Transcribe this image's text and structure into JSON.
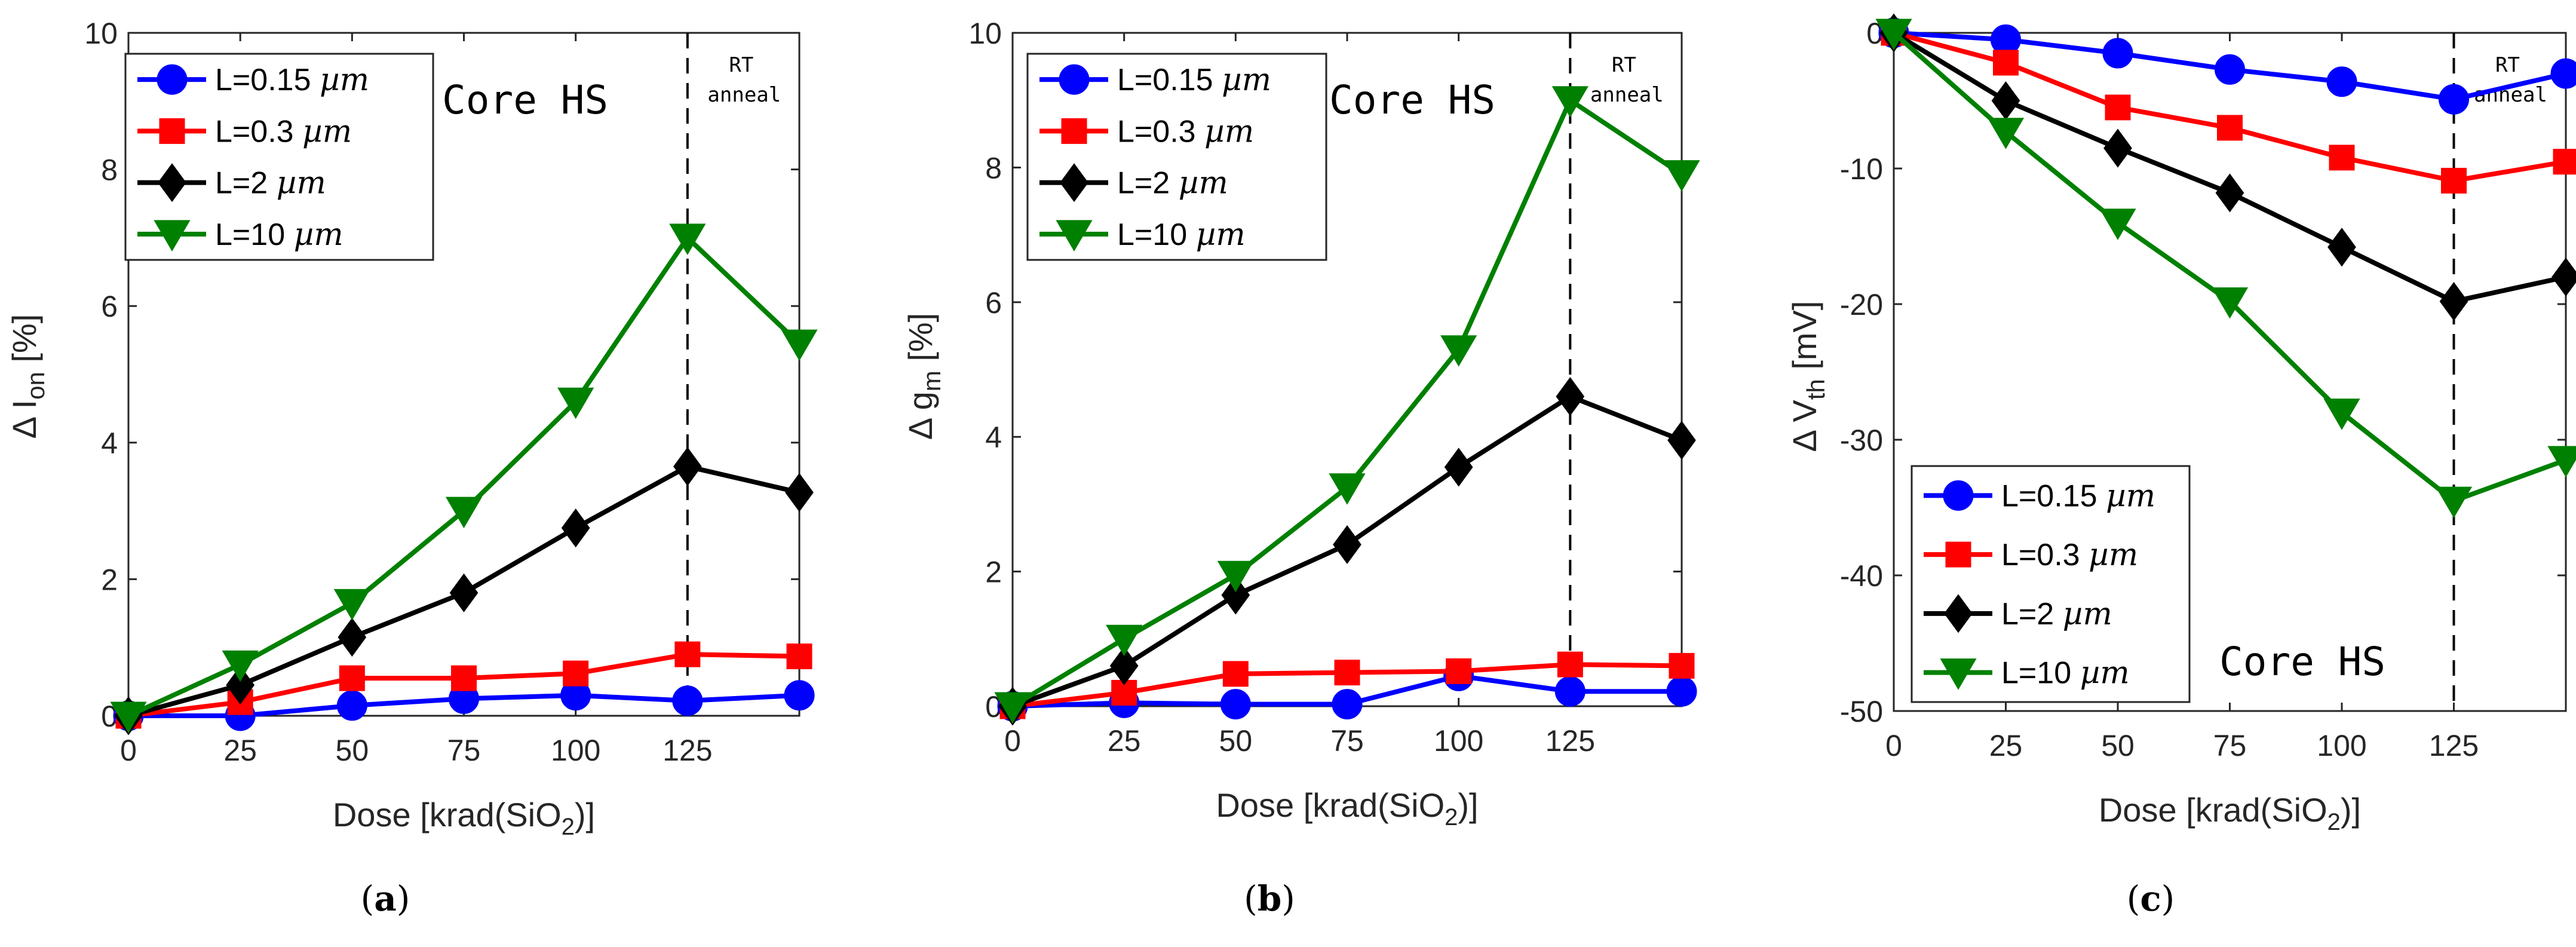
{
  "figure": {
    "captions": [
      {
        "open": "(",
        "letter": "a",
        "close": ")"
      },
      {
        "open": "(",
        "letter": "b",
        "close": ")"
      },
      {
        "open": "(",
        "letter": "c",
        "close": ")"
      }
    ]
  },
  "colors": {
    "L=0.15 µm": "#0000ff",
    "L=0.3 µm": "#ff0000",
    "L=2 µm": "#000000",
    "L=10 µm": "#008000",
    "axis": "#262626",
    "vline": "#000000"
  },
  "chart_data": [
    {
      "type": "line",
      "panel": "a",
      "xlabel": "Dose [krad(SiO2)]",
      "ylabel": "Δ Ion [%]",
      "x_ticks": [
        "0",
        "25",
        "50",
        "75",
        "100",
        "125"
      ],
      "x": [
        0,
        25,
        50,
        75,
        100,
        125,
        150
      ],
      "xlim": [
        0,
        150
      ],
      "ylim": [
        0,
        10
      ],
      "y_ticks": [
        "0",
        "2",
        "4",
        "6",
        "8",
        "10"
      ],
      "grid": false,
      "legend_position": "top-left",
      "annotations": {
        "text": "Core HS",
        "vline_x": 125,
        "vline_label_1": "RT",
        "vline_label_2": "anneal"
      },
      "series": [
        {
          "name": "L=0.15 µm",
          "marker": "circle",
          "values": [
            0,
            0,
            0.15,
            0.25,
            0.3,
            0.22,
            0.3
          ]
        },
        {
          "name": "L=0.3 µm",
          "marker": "square",
          "values": [
            0,
            0.2,
            0.55,
            0.55,
            0.62,
            0.9,
            0.87
          ]
        },
        {
          "name": "L=2 µm",
          "marker": "diamond",
          "values": [
            0,
            0.45,
            1.15,
            1.8,
            2.75,
            3.65,
            3.27
          ]
        },
        {
          "name": "L=10 µm",
          "marker": "triangle-down",
          "values": [
            0,
            0.75,
            1.65,
            3.0,
            4.6,
            7.0,
            5.45
          ]
        }
      ]
    },
    {
      "type": "line",
      "panel": "b",
      "xlabel": "Dose [krad(SiO2)]",
      "ylabel": "Δ gm [%]",
      "x_ticks": [
        "0",
        "25",
        "50",
        "75",
        "100",
        "125"
      ],
      "x": [
        0,
        25,
        50,
        75,
        100,
        125,
        150
      ],
      "xlim": [
        0,
        150
      ],
      "ylim": [
        0,
        10
      ],
      "y_ticks": [
        "0",
        "2",
        "4",
        "6",
        "8",
        "10"
      ],
      "grid": false,
      "legend_position": "top-left",
      "annotations": {
        "text": "Core HS",
        "vline_x": 125,
        "vline_label_1": "RT",
        "vline_label_2": "anneal"
      },
      "series": [
        {
          "name": "L=0.15 µm",
          "marker": "circle",
          "values": [
            0,
            0.05,
            0.03,
            0.03,
            0.45,
            0.22,
            0.22
          ]
        },
        {
          "name": "L=0.3 µm",
          "marker": "square",
          "values": [
            0,
            0.2,
            0.48,
            0.5,
            0.52,
            0.62,
            0.6
          ]
        },
        {
          "name": "L=2 µm",
          "marker": "diamond",
          "values": [
            0,
            0.6,
            1.65,
            2.4,
            3.55,
            4.6,
            3.95
          ]
        },
        {
          "name": "L=10 µm",
          "marker": "triangle-down",
          "values": [
            0,
            1.0,
            1.95,
            3.25,
            5.3,
            9.0,
            7.9
          ]
        }
      ]
    },
    {
      "type": "line",
      "panel": "c",
      "xlabel": "Dose [krad(SiO2)]",
      "ylabel": "Δ Vth [mV]",
      "x_ticks": [
        "0",
        "25",
        "50",
        "75",
        "100",
        "125"
      ],
      "x": [
        0,
        25,
        50,
        75,
        100,
        125,
        150
      ],
      "xlim": [
        0,
        150
      ],
      "ylim": [
        -50,
        0
      ],
      "y_ticks": [
        "0",
        "-10",
        "-20",
        "-30",
        "-40",
        "-50"
      ],
      "grid": false,
      "legend_position": "bottom-left",
      "annotations": {
        "text": "Core HS",
        "vline_x": 125,
        "vline_label_1": "RT",
        "vline_label_2": "anneal"
      },
      "series": [
        {
          "name": "L=0.15 µm",
          "marker": "circle",
          "values": [
            0,
            -0.5,
            -1.5,
            -2.7,
            -3.6,
            -4.9,
            -3.0
          ]
        },
        {
          "name": "L=0.3 µm",
          "marker": "square",
          "values": [
            0,
            -2.2,
            -5.5,
            -7.0,
            -9.2,
            -10.9,
            -9.5
          ]
        },
        {
          "name": "L=2 µm",
          "marker": "diamond",
          "values": [
            0,
            -5.0,
            -8.5,
            -11.8,
            -15.8,
            -19.8,
            -18.0
          ]
        },
        {
          "name": "L=10 µm",
          "marker": "triangle-down",
          "values": [
            0,
            -7.3,
            -14.0,
            -19.8,
            -28.0,
            -34.5,
            -31.5
          ]
        }
      ]
    }
  ]
}
